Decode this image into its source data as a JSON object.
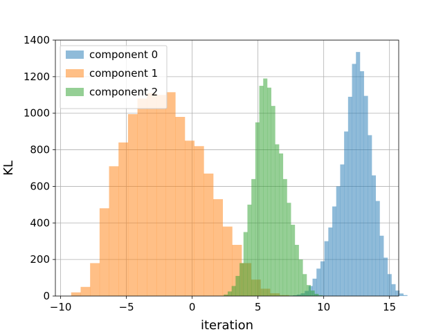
{
  "chart_data": {
    "type": "bar",
    "xlabel": "iteration",
    "ylabel": "KL",
    "xlim": [
      -10.4,
      15.7
    ],
    "ylim": [
      0,
      1400
    ],
    "xticks": [
      -10,
      -5,
      0,
      5,
      10,
      15
    ],
    "yticks": [
      0,
      200,
      400,
      600,
      800,
      1000,
      1200,
      1400
    ],
    "xtick_labels": [
      "−10",
      "−5",
      "0",
      "5",
      "10",
      "15"
    ],
    "ytick_labels": [
      "0",
      "200",
      "400",
      "600",
      "800",
      "1000",
      "1200",
      "1400"
    ],
    "grid": true,
    "legend_position": "top-left",
    "series": [
      {
        "name": "component 0",
        "color": "#1f77b4",
        "opacity": 0.5,
        "bin_start": 7.35,
        "bin_width": 0.3,
        "values": [
          2,
          4,
          8,
          15,
          28,
          55,
          95,
          150,
          190,
          300,
          375,
          490,
          600,
          720,
          900,
          1090,
          1270,
          1335,
          1230,
          1095,
          880,
          660,
          520,
          330,
          210,
          120,
          65,
          30,
          14,
          5
        ]
      },
      {
        "name": "component 1",
        "color": "#ff7f0e",
        "opacity": 0.5,
        "bin_start": -9.2,
        "bin_width": 0.72,
        "values": [
          20,
          50,
          180,
          480,
          710,
          840,
          995,
          1080,
          1110,
          1100,
          1115,
          980,
          850,
          820,
          670,
          530,
          380,
          280,
          180,
          90,
          40,
          15,
          5
        ]
      },
      {
        "name": "component 2",
        "color": "#2ca02c",
        "opacity": 0.5,
        "bin_start": 2.4,
        "bin_width": 0.3,
        "values": [
          8,
          25,
          55,
          110,
          180,
          350,
          500,
          640,
          950,
          1150,
          1190,
          1140,
          1040,
          830,
          780,
          640,
          510,
          390,
          280,
          200,
          120,
          60,
          30,
          12,
          4
        ]
      }
    ]
  }
}
